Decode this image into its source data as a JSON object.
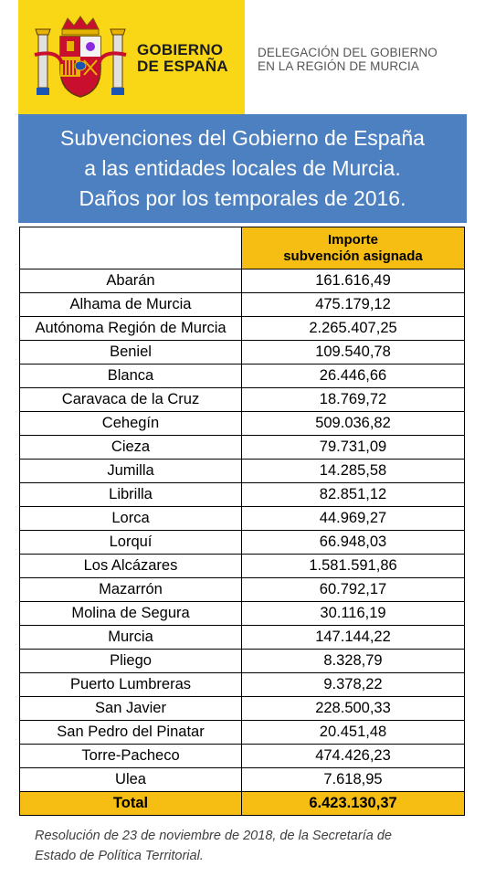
{
  "header": {
    "gobierno_line1": "GOBIERNO",
    "gobierno_line2": "DE ESPAÑA",
    "delegacion_line1": "DELEGACIÓN DEL GOBIERNO",
    "delegacion_line2": "EN LA REGIÓN DE MURCIA",
    "brand_yellow": "#f9d616"
  },
  "banner": {
    "line1": "Subvenciones del Gobierno de España",
    "line2": "a las entidades locales de Murcia.",
    "line3": "Daños por los temporales de 2016.",
    "color": "#4d80c0"
  },
  "table": {
    "header_line1": "Importe",
    "header_line2": "subvención asignada",
    "accent": "#f6be12",
    "rows": [
      {
        "name": "Abarán",
        "amount": "161.616,49"
      },
      {
        "name": "Alhama de Murcia",
        "amount": "475.179,12"
      },
      {
        "name": "Autónoma Región de Murcia",
        "amount": "2.265.407,25"
      },
      {
        "name": "Beniel",
        "amount": "109.540,78"
      },
      {
        "name": "Blanca",
        "amount": "26.446,66"
      },
      {
        "name": "Caravaca de la Cruz",
        "amount": "18.769,72"
      },
      {
        "name": "Cehegín",
        "amount": "509.036,82"
      },
      {
        "name": "Cieza",
        "amount": "79.731,09"
      },
      {
        "name": "Jumilla",
        "amount": "14.285,58"
      },
      {
        "name": "Librilla",
        "amount": "82.851,12"
      },
      {
        "name": "Lorca",
        "amount": "44.969,27"
      },
      {
        "name": "Lorquí",
        "amount": "66.948,03"
      },
      {
        "name": "Los Alcázares",
        "amount": "1.581.591,86"
      },
      {
        "name": "Mazarrón",
        "amount": "60.792,17"
      },
      {
        "name": "Molina de Segura",
        "amount": "30.116,19"
      },
      {
        "name": "Murcia",
        "amount": "147.144,22"
      },
      {
        "name": "Pliego",
        "amount": "8.328,79"
      },
      {
        "name": "Puerto Lumbreras",
        "amount": "9.378,22"
      },
      {
        "name": "San Javier",
        "amount": "228.500,33"
      },
      {
        "name": "San Pedro del Pinatar",
        "amount": "20.451,48"
      },
      {
        "name": "Torre-Pacheco",
        "amount": "474.426,23"
      },
      {
        "name": "Ulea",
        "amount": "7.618,95"
      }
    ],
    "total_label": "Total",
    "total_amount": "6.423.130,37"
  },
  "footnote": {
    "line1": "Resolución de 23 de noviembre de 2018, de la Secretaría de",
    "line2": "Estado de Política Territorial."
  }
}
